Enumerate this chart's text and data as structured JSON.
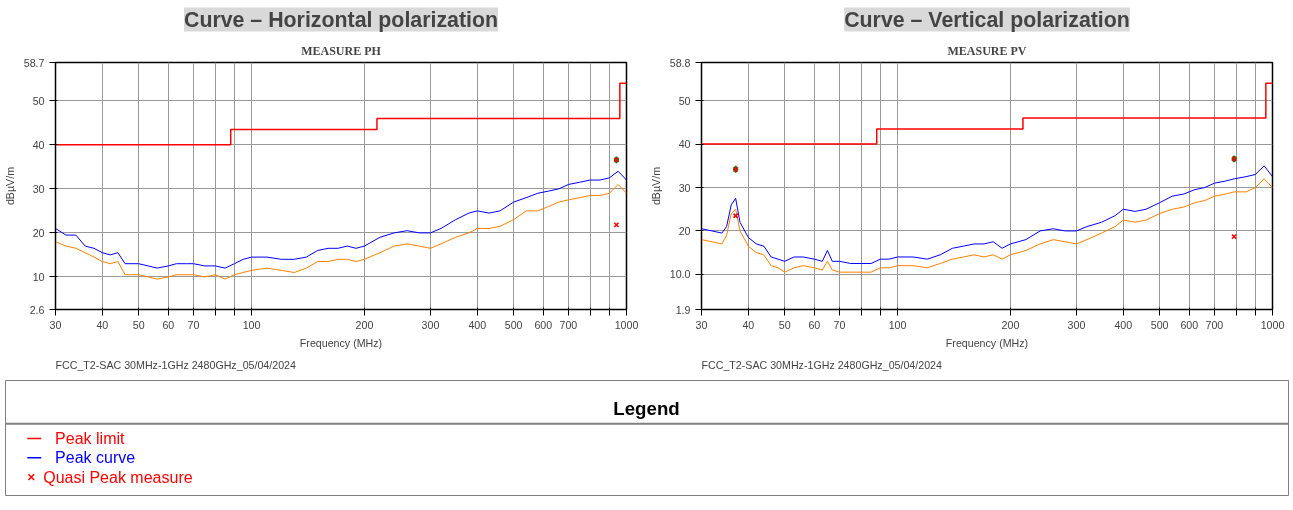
{
  "chart_data": [
    {
      "type": "line",
      "title": "Curve – Horizontal polarization",
      "subtitle": "MEASURE PH",
      "xlabel": "Frequency (MHz)",
      "ylabel": "dBµV/m",
      "log": "x",
      "grid": true,
      "legend": "bottom",
      "legend_title": "Legend",
      "annotations": [
        "FCC_T2-SAC 30MHz-1GHz 2480GHz_05/04/2024"
      ],
      "xlim": [
        30,
        1000
      ],
      "ylim": [
        2.6,
        58.7
      ],
      "xticks": [
        30,
        40,
        50,
        60,
        70,
        {
          "value": 80,
          "label": null
        },
        {
          "value": 90,
          "label": null
        },
        100,
        200,
        300,
        400,
        500,
        600,
        700,
        {
          "value": 800,
          "label": null
        },
        {
          "value": 900,
          "label": null
        },
        1000
      ],
      "yticks": [
        2.6,
        10,
        20,
        30,
        40,
        50,
        58.7
      ],
      "series": [
        {
          "name": "Peak limit",
          "type": "step",
          "color": "#ff0000",
          "x": [
            30,
            88,
            216,
            960,
            1000
          ],
          "values": [
            40,
            43.5,
            46,
            54,
            54
          ]
        },
        {
          "name": "Peak curve",
          "color": "#0000ff",
          "x": [
            30,
            32,
            34,
            36,
            38,
            40,
            42,
            44,
            46,
            48,
            50,
            53,
            56,
            60,
            63,
            67,
            70,
            75,
            80,
            85,
            90,
            95,
            100,
            110,
            120,
            130,
            140,
            150,
            160,
            170,
            180,
            190,
            200,
            220,
            240,
            260,
            280,
            300,
            320,
            350,
            380,
            400,
            430,
            460,
            500,
            540,
            580,
            620,
            660,
            700,
            750,
            800,
            850,
            900,
            950,
            1000
          ],
          "values": [
            21,
            19.5,
            19.5,
            17,
            16.5,
            15.5,
            15,
            15.5,
            13,
            13,
            13,
            12.5,
            12,
            12.5,
            13,
            13,
            13,
            12.5,
            12.5,
            12,
            13,
            14,
            14.5,
            14.5,
            14,
            14,
            14.5,
            16,
            16.5,
            16.5,
            17,
            16.5,
            17,
            19,
            20,
            20.5,
            20,
            20,
            21,
            23,
            24.5,
            25,
            24.5,
            25,
            27,
            28,
            29,
            29.5,
            30,
            31,
            31.5,
            32,
            32,
            32.5,
            34,
            32
          ]
        },
        {
          "color": "#ff8000",
          "x": [
            30,
            32,
            34,
            36,
            38,
            40,
            42,
            44,
            46,
            48,
            50,
            53,
            56,
            60,
            63,
            67,
            70,
            75,
            80,
            85,
            90,
            95,
            100,
            110,
            120,
            130,
            140,
            150,
            160,
            170,
            180,
            190,
            200,
            220,
            240,
            260,
            280,
            300,
            320,
            350,
            380,
            400,
            430,
            460,
            500,
            540,
            580,
            620,
            660,
            700,
            750,
            800,
            850,
            900,
            950,
            1000
          ],
          "values": [
            18,
            17,
            16.5,
            15.5,
            14.5,
            13.5,
            13,
            13.5,
            10.5,
            10.5,
            10.5,
            10,
            9.5,
            10,
            10.5,
            10.5,
            10.5,
            10,
            10.5,
            9.5,
            10.5,
            11,
            11.5,
            12,
            11.5,
            11,
            12,
            13.5,
            13.5,
            14,
            14,
            13.5,
            14,
            15.5,
            17,
            17.5,
            17,
            16.5,
            17.5,
            19,
            20,
            21,
            21,
            21.5,
            23,
            25,
            25,
            26,
            27,
            27.5,
            28,
            28.5,
            28.5,
            29,
            31,
            29
          ]
        },
        {
          "type": "scatter",
          "marker": "diamond",
          "color": "#008000",
          "x": [
            940
          ],
          "values": [
            36.6
          ]
        },
        {
          "name": "Quasi Peak measure",
          "type": "scatter",
          "marker": "cross",
          "color": "#ff0000",
          "x": [
            940,
            940
          ],
          "values": [
            36.6,
            21.8
          ]
        }
      ]
    },
    {
      "type": "line",
      "title": "Curve – Vertical polarization",
      "subtitle": "MEASURE PV",
      "xlabel": "Frequency (MHz)",
      "ylabel": "dBµV/m",
      "log": "x",
      "grid": true,
      "annotations": [
        "FCC_T2-SAC 30MHz-1GHz 2480GHz_05/04/2024"
      ],
      "xlim": [
        30,
        1000
      ],
      "ylim": [
        1.9,
        58.8
      ],
      "xticks": [
        30,
        40,
        50,
        60,
        70,
        {
          "value": 80,
          "label": null
        },
        {
          "value": 90,
          "label": null
        },
        100,
        200,
        300,
        400,
        500,
        600,
        700,
        {
          "value": 800,
          "label": null
        },
        {
          "value": 900,
          "label": null
        },
        1000
      ],
      "yticks": [
        1.9,
        {
          "value": 10,
          "label": "10.0"
        },
        20,
        30,
        40,
        50,
        58.8
      ],
      "series": [
        {
          "name": "Peak limit",
          "type": "step",
          "color": "#ff0000",
          "x": [
            30,
            88,
            216,
            960,
            1000
          ],
          "values": [
            40,
            43.5,
            46,
            54,
            54
          ]
        },
        {
          "name": "Peak curve",
          "color": "#0000ff",
          "x": [
            30,
            32,
            34,
            35,
            36,
            37,
            38,
            40,
            42,
            44,
            46,
            48,
            50,
            53,
            56,
            60,
            63,
            65,
            67,
            70,
            75,
            80,
            85,
            90,
            95,
            100,
            110,
            120,
            130,
            140,
            150,
            160,
            170,
            180,
            190,
            200,
            220,
            240,
            260,
            280,
            300,
            320,
            350,
            380,
            400,
            430,
            460,
            500,
            540,
            580,
            620,
            660,
            700,
            750,
            790,
            850,
            900,
            950,
            1000
          ],
          "values": [
            20.5,
            20,
            19.5,
            21,
            26,
            27.5,
            22,
            18.5,
            17,
            16.5,
            14,
            13.5,
            13,
            14,
            14,
            13.5,
            13,
            15.5,
            13,
            13,
            12.5,
            12.5,
            12.5,
            13.5,
            13.5,
            14,
            14,
            13.5,
            14.5,
            16,
            16.5,
            17,
            17,
            17.5,
            16,
            17,
            18,
            20,
            20.5,
            20,
            20,
            21,
            22,
            23.5,
            25,
            24.5,
            25,
            26.5,
            28,
            28.5,
            29.5,
            30,
            31,
            31.5,
            32,
            32.5,
            33,
            35,
            32.5
          ]
        },
        {
          "color": "#ff8000",
          "x": [
            30,
            32,
            34,
            35,
            36,
            37,
            38,
            40,
            42,
            44,
            46,
            48,
            50,
            53,
            56,
            60,
            63,
            65,
            67,
            70,
            75,
            80,
            85,
            90,
            95,
            100,
            110,
            120,
            130,
            140,
            150,
            160,
            170,
            180,
            190,
            200,
            220,
            240,
            260,
            280,
            300,
            320,
            350,
            380,
            400,
            430,
            460,
            500,
            540,
            580,
            620,
            660,
            700,
            750,
            790,
            850,
            900,
            950,
            1000
          ],
          "values": [
            18,
            17.5,
            17,
            19,
            24,
            25,
            20,
            16.5,
            15,
            14.5,
            12,
            11.5,
            10.5,
            11.5,
            12,
            11.5,
            11,
            13,
            11,
            10.5,
            10.5,
            10.5,
            10.5,
            11.5,
            11.5,
            12,
            12,
            11.5,
            12.5,
            13.5,
            14,
            14.5,
            14,
            14.5,
            13.5,
            14.5,
            15.5,
            17,
            18,
            17.5,
            17,
            18,
            19.5,
            21,
            22.5,
            22,
            22.5,
            24,
            25,
            25.5,
            26.5,
            27,
            28,
            28.5,
            29,
            29,
            30,
            32,
            30
          ]
        },
        {
          "type": "scatter",
          "marker": "diamond",
          "color": "#008000",
          "x": [
            37,
            790
          ],
          "values": [
            34.2,
            36.6
          ]
        },
        {
          "name": "Quasi Peak measure",
          "type": "scatter",
          "marker": "cross",
          "color": "#ff0000",
          "x": [
            37,
            37,
            790,
            790
          ],
          "values": [
            34.2,
            23.5,
            36.6,
            18.7
          ]
        }
      ]
    }
  ]
}
